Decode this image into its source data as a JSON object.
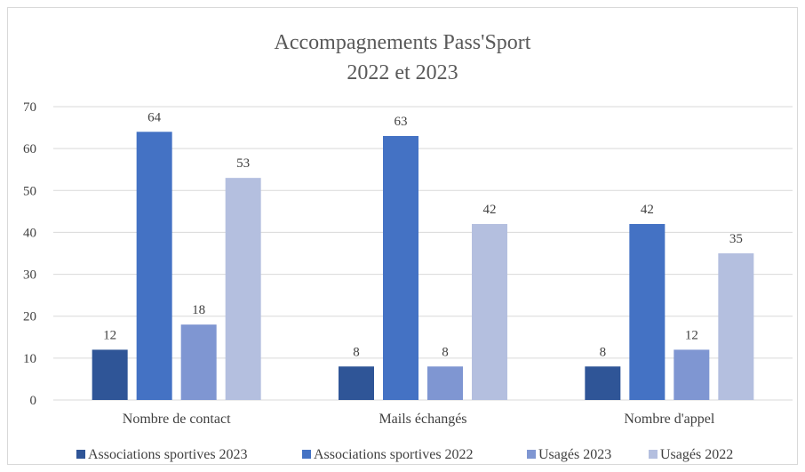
{
  "chart_data": {
    "type": "bar",
    "title_line1": "Accompagnements  Pass'Sport",
    "title_line2": "2022 et 2023",
    "categories": [
      "Nombre de contact",
      "Mails échangés",
      "Nombre d'appel"
    ],
    "series": [
      {
        "name": "Associations sportives 2023",
        "color": "#2f5597",
        "values": [
          12,
          8,
          8
        ]
      },
      {
        "name": "Associations sportives 2022",
        "color": "#4472c4",
        "values": [
          64,
          63,
          42
        ]
      },
      {
        "name": "Usagés 2023",
        "color": "#7f96d2",
        "values": [
          18,
          8,
          12
        ]
      },
      {
        "name": "Usagés 2022",
        "color": "#b4bfdf",
        "values": [
          53,
          42,
          35
        ]
      }
    ],
    "ylim": [
      0,
      70
    ],
    "yticks": [
      0,
      10,
      20,
      30,
      40,
      50,
      60,
      70
    ],
    "grid": true,
    "legend_position": "bottom",
    "xlabel": "",
    "ylabel": ""
  }
}
